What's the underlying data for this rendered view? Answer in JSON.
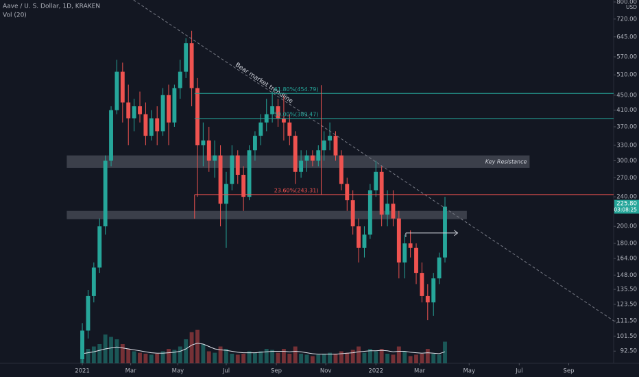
{
  "chart_data": {
    "type": "candlestick",
    "title": "Aave / U. S. Dollar, 1D, KRAKEN",
    "subtitle": "Vol (20)",
    "currency": "USD",
    "log_scale": true,
    "grid": false,
    "up_color": "#26a69a",
    "down_color": "#ef5350",
    "open": [
      88,
      105,
      130,
      155,
      200,
      300,
      410,
      520,
      430,
      390,
      420,
      400,
      350,
      390,
      360,
      450,
      380,
      470,
      520,
      620,
      470,
      330,
      340,
      300,
      310,
      230,
      260,
      310,
      275,
      240,
      320,
      350,
      380,
      400,
      420,
      390,
      380,
      350,
      280,
      300,
      310,
      300,
      320,
      340,
      350,
      310,
      260,
      235,
      200,
      175,
      190,
      250,
      280,
      215,
      230,
      210,
      160,
      180,
      175,
      150,
      130,
      125,
      145,
      165
    ],
    "high": [
      110,
      135,
      160,
      210,
      310,
      420,
      560,
      550,
      480,
      440,
      460,
      430,
      410,
      420,
      470,
      480,
      480,
      560,
      640,
      670,
      500,
      380,
      370,
      340,
      330,
      280,
      330,
      320,
      290,
      330,
      360,
      400,
      440,
      460,
      440,
      450,
      400,
      360,
      320,
      320,
      320,
      330,
      360,
      380,
      360,
      320,
      270,
      250,
      210,
      200,
      260,
      300,
      290,
      250,
      250,
      220,
      190,
      195,
      180,
      160,
      140,
      150,
      170,
      240
    ],
    "low": [
      86,
      100,
      125,
      150,
      190,
      290,
      400,
      380,
      330,
      360,
      380,
      330,
      340,
      330,
      350,
      330,
      370,
      440,
      500,
      420,
      240,
      290,
      280,
      270,
      200,
      175,
      250,
      260,
      220,
      235,
      300,
      330,
      360,
      380,
      370,
      340,
      330,
      260,
      270,
      280,
      290,
      290,
      300,
      320,
      300,
      250,
      220,
      190,
      160,
      165,
      185,
      240,
      200,
      200,
      200,
      145,
      145,
      165,
      140,
      125,
      112,
      115,
      140,
      160
    ],
    "close": [
      105,
      130,
      155,
      200,
      300,
      410,
      520,
      430,
      390,
      420,
      400,
      350,
      390,
      360,
      450,
      380,
      470,
      520,
      620,
      470,
      330,
      340,
      300,
      310,
      230,
      260,
      310,
      275,
      240,
      320,
      350,
      380,
      400,
      420,
      390,
      380,
      350,
      280,
      300,
      310,
      300,
      320,
      340,
      350,
      310,
      260,
      235,
      200,
      175,
      190,
      250,
      280,
      215,
      230,
      210,
      160,
      180,
      175,
      150,
      130,
      125,
      145,
      165,
      225.8
    ],
    "volume": [
      45,
      30,
      35,
      40,
      60,
      55,
      50,
      40,
      30,
      25,
      22,
      20,
      18,
      20,
      25,
      30,
      28,
      35,
      50,
      65,
      70,
      40,
      25,
      22,
      35,
      30,
      20,
      18,
      20,
      25,
      22,
      25,
      30,
      28,
      22,
      30,
      20,
      35,
      20,
      18,
      15,
      18,
      20,
      22,
      20,
      25,
      22,
      28,
      35,
      22,
      30,
      25,
      30,
      20,
      18,
      35,
      25,
      15,
      18,
      20,
      30,
      20,
      18,
      45
    ],
    "volume_ma": [
      20,
      22,
      24,
      27,
      30,
      32,
      34,
      32,
      30,
      28,
      26,
      24,
      22,
      21,
      21,
      22,
      23,
      25,
      30,
      38,
      42,
      40,
      35,
      30,
      28,
      27,
      25,
      23,
      22,
      22,
      22,
      23,
      24,
      25,
      25,
      25,
      24,
      25,
      24,
      22,
      20,
      19,
      19,
      19,
      19,
      20,
      21,
      22,
      24,
      25,
      26,
      26,
      27,
      26,
      24,
      25,
      25,
      23,
      22,
      21,
      22,
      21,
      20,
      24
    ],
    "volume_lim": [
      0,
      100
    ],
    "xlim": [
      -14.3,
      92.3
    ],
    "xticks": [
      {
        "value": 0,
        "label": "2021"
      },
      {
        "value": 8.4,
        "label": "Mar"
      },
      {
        "value": 16.6,
        "label": "May"
      },
      {
        "value": 25,
        "label": "Jul"
      },
      {
        "value": 33.7,
        "label": "Sep"
      },
      {
        "value": 42.3,
        "label": "Nov"
      },
      {
        "value": 51,
        "label": "2022"
      },
      {
        "value": 58.6,
        "label": "Mar"
      },
      {
        "value": 67.2,
        "label": "May"
      },
      {
        "value": 75.9,
        "label": "Jul"
      },
      {
        "value": 84.5,
        "label": "Sep"
      }
    ],
    "ylim": [
      85.8,
      810
    ],
    "yticks": [
      {
        "value": 800,
        "label": "800.00"
      },
      {
        "value": 720,
        "label": "720.00"
      },
      {
        "value": 645,
        "label": "645.00"
      },
      {
        "value": 570,
        "label": "570.00"
      },
      {
        "value": 510,
        "label": "510.00"
      },
      {
        "value": 450,
        "label": "450.00"
      },
      {
        "value": 410,
        "label": "410.00"
      },
      {
        "value": 370,
        "label": "370.00"
      },
      {
        "value": 330,
        "label": "330.00"
      },
      {
        "value": 300,
        "label": "300.00"
      },
      {
        "value": 270,
        "label": "270.00"
      },
      {
        "value": 240,
        "label": "240.00"
      },
      {
        "value": 200,
        "label": "200.00"
      },
      {
        "value": 180,
        "label": "180.00"
      },
      {
        "value": 164,
        "label": "164.00"
      },
      {
        "value": 148,
        "label": "148.00"
      },
      {
        "value": 135.5,
        "label": "135.50"
      },
      {
        "value": 123.5,
        "label": "123.50"
      },
      {
        "value": 111.5,
        "label": "111.50"
      },
      {
        "value": 101.5,
        "label": "101.50"
      },
      {
        "value": 92.5,
        "label": "92.50"
      }
    ],
    "last_price": {
      "value": 225.8,
      "label": "225.80",
      "countdown": "03:08:25"
    },
    "fib_levels": [
      {
        "value": 454.79,
        "label": "61.80%(454.79)",
        "color": "#26a69a"
      },
      {
        "value": 389.47,
        "label": "50.00%(389.47)",
        "color": "#26a69a"
      },
      {
        "value": 243.31,
        "label": "23.60%(243.31)",
        "color": "#ef5350"
      }
    ],
    "fib_x": [
      19.5,
      41.5
    ],
    "zones": [
      {
        "label": "Key Resistance",
        "low": 287,
        "high": 310,
        "x": [
          -2.7,
          77.7
        ]
      },
      {
        "low": 209,
        "high": 220,
        "x": [
          -2.7,
          66.8
        ]
      }
    ],
    "trendline": {
      "label": "Bear market trendline",
      "x": [
        8.9,
        92.9
      ],
      "y": [
        810,
        110
      ]
    },
    "arrow": {
      "x": [
        56.2,
        65.2
      ],
      "y": 192
    }
  }
}
